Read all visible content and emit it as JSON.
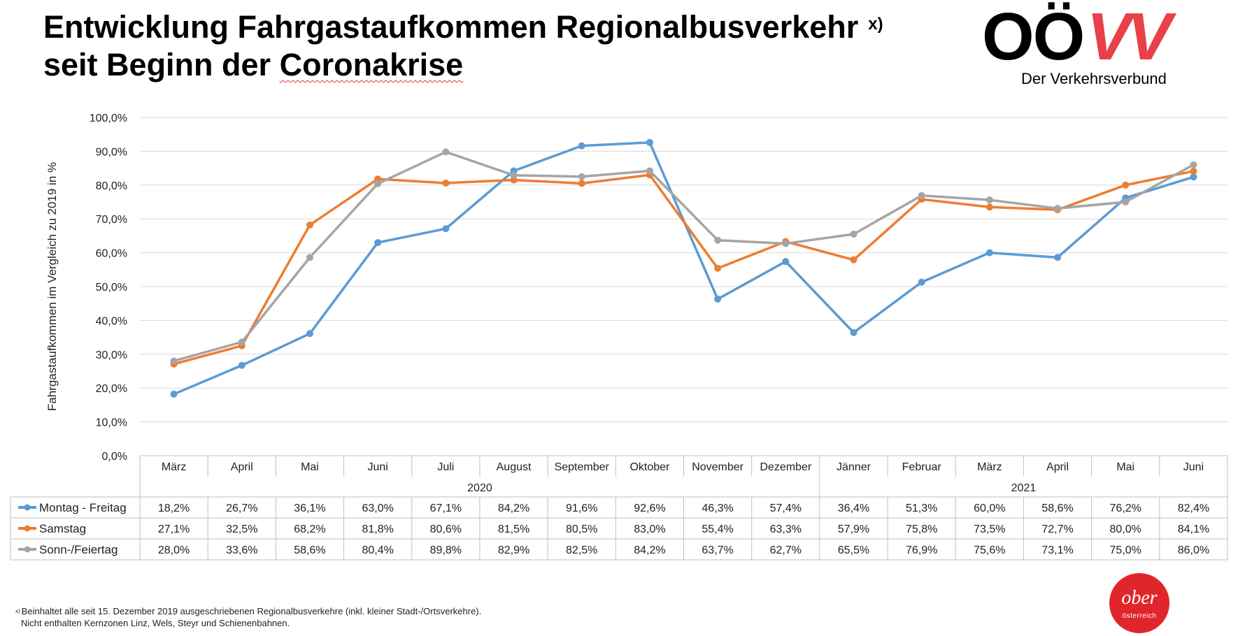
{
  "header": {
    "title_line1": "Entwicklung Fahrgastaufkommen Regionalbusverkehr",
    "title_marker": "x)",
    "title_line2_part1": "seit Beginn der ",
    "title_line2_part2": "Coronakrise"
  },
  "logo": {
    "wordmark_black": "OÖ",
    "wordmark_red": "VV",
    "subtitle": "Der Verkehrsverbund",
    "red_color": "#e8414a"
  },
  "chart_data": {
    "type": "line",
    "ylabel": "Fahrgastaufkommen im Vergleich zu 2019 in %",
    "ylim": [
      0,
      100
    ],
    "yticks": [
      0,
      10,
      20,
      30,
      40,
      50,
      60,
      70,
      80,
      90,
      100
    ],
    "ytick_labels": [
      "0,0%",
      "10,0%",
      "20,0%",
      "30,0%",
      "40,0%",
      "50,0%",
      "60,0%",
      "70,0%",
      "80,0%",
      "90,0%",
      "100,0%"
    ],
    "grid": true,
    "categories": [
      "März",
      "April",
      "Mai",
      "Juni",
      "Juli",
      "August",
      "September",
      "Oktober",
      "November",
      "Dezember",
      "Jänner",
      "Februar",
      "März",
      "April",
      "Mai",
      "Juni"
    ],
    "year_groups": [
      {
        "label": "2020",
        "span": 10
      },
      {
        "label": "2021",
        "span": 6
      }
    ],
    "series": [
      {
        "name": "Montag - Freitag",
        "color": "#5b9bd5",
        "values": [
          18.2,
          26.7,
          36.1,
          63.0,
          67.1,
          84.2,
          91.6,
          92.6,
          46.3,
          57.4,
          36.4,
          51.3,
          60.0,
          58.6,
          76.2,
          82.4
        ],
        "labels": [
          "18,2%",
          "26,7%",
          "36,1%",
          "63,0%",
          "67,1%",
          "84,2%",
          "91,6%",
          "92,6%",
          "46,3%",
          "57,4%",
          "36,4%",
          "51,3%",
          "60,0%",
          "58,6%",
          "76,2%",
          "82,4%"
        ]
      },
      {
        "name": "Samstag",
        "color": "#ed7d31",
        "values": [
          27.1,
          32.5,
          68.2,
          81.8,
          80.6,
          81.5,
          80.5,
          83.0,
          55.4,
          63.3,
          57.9,
          75.8,
          73.5,
          72.7,
          80.0,
          84.1
        ],
        "labels": [
          "27,1%",
          "32,5%",
          "68,2%",
          "81,8%",
          "80,6%",
          "81,5%",
          "80,5%",
          "83,0%",
          "55,4%",
          "63,3%",
          "57,9%",
          "75,8%",
          "73,5%",
          "72,7%",
          "80,0%",
          "84,1%"
        ]
      },
      {
        "name": "Sonn-/Feiertag",
        "color": "#a5a5a5",
        "values": [
          28.0,
          33.6,
          58.6,
          80.4,
          89.8,
          82.9,
          82.5,
          84.2,
          63.7,
          62.7,
          65.5,
          76.9,
          75.6,
          73.1,
          75.0,
          86.0
        ],
        "labels": [
          "28,0%",
          "33,6%",
          "58,6%",
          "80,4%",
          "89,8%",
          "82,9%",
          "82,5%",
          "84,2%",
          "63,7%",
          "62,7%",
          "65,5%",
          "76,9%",
          "75,6%",
          "73,1%",
          "75,0%",
          "86,0%"
        ]
      }
    ]
  },
  "footnote": {
    "marker": "x)",
    "line1": "Beinhaltet alle seit 15. Dezember 2019 ausgeschriebenen Regionalbusverkehre (inkl. kleiner Stadt-/Ortsverkehre).",
    "line2": "Nicht enthalten Kernzonen Linz, Wels, Steyr und Schienenbahnen."
  },
  "badge": {
    "top": "ober",
    "bottom": "österreich",
    "color": "#e0262b"
  }
}
